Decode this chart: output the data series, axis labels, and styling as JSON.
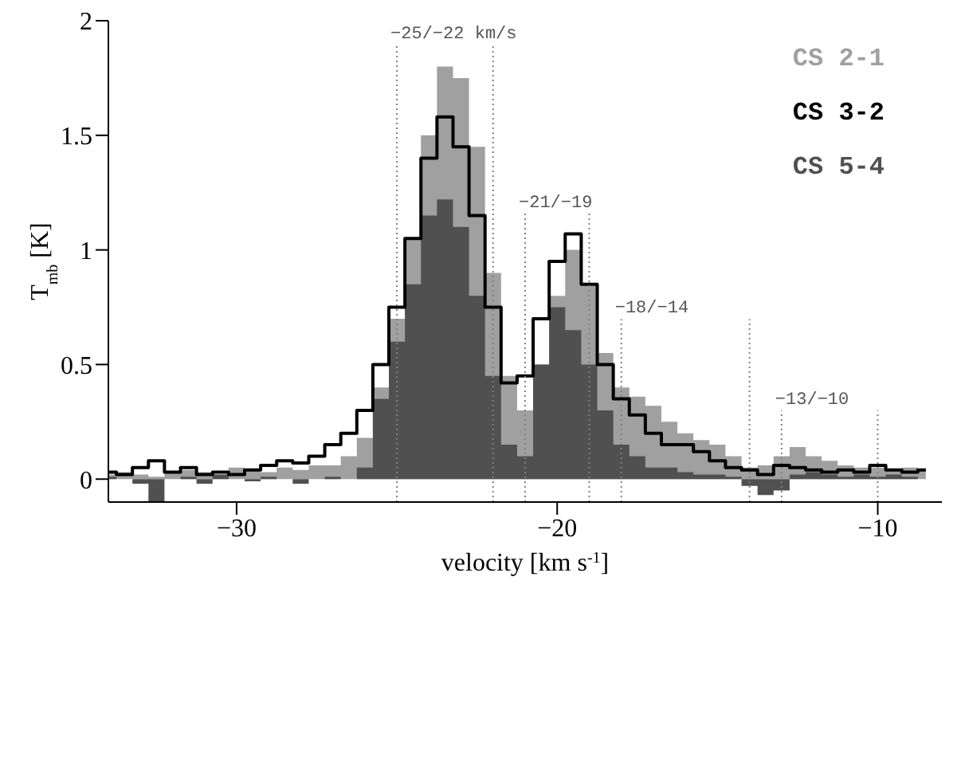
{
  "chart_data": {
    "type": "area",
    "xlabel": "velocity [km s$^{-1}$]",
    "ylabel": "T$_{mb}$ [K]",
    "x": [
      -34,
      -33.5,
      -33,
      -32.5,
      -32,
      -31.5,
      -31,
      -30.5,
      -30,
      -29.5,
      -29,
      -28.5,
      -28,
      -27.5,
      -27,
      -26.5,
      -26,
      -25.5,
      -25,
      -24.5,
      -24,
      -23.5,
      -23,
      -22.5,
      -22,
      -21.5,
      -21,
      -20.5,
      -20,
      -19.5,
      -19,
      -18.5,
      -18,
      -17.5,
      -17,
      -16.5,
      -16,
      -15.5,
      -15,
      -14.5,
      -14,
      -13.5,
      -13,
      -12.5,
      -12,
      -11.5,
      -11,
      -10.5,
      -10,
      -9.5,
      -9,
      -8.5
    ],
    "series": [
      {
        "name": "CS 2-1",
        "color": "#a0a0a0",
        "values": [
          0.02,
          0.03,
          0.02,
          0.01,
          0.03,
          0.04,
          0.03,
          0.02,
          0.05,
          0.04,
          0.03,
          0.05,
          0.04,
          0.06,
          0.06,
          0.1,
          0.18,
          0.4,
          0.7,
          1.05,
          1.5,
          1.8,
          1.75,
          1.45,
          0.9,
          0.45,
          0.3,
          0.5,
          0.8,
          1.0,
          0.85,
          0.55,
          0.4,
          0.36,
          0.32,
          0.25,
          0.2,
          0.17,
          0.15,
          0.1,
          0.05,
          0.06,
          0.1,
          0.14,
          0.1,
          0.08,
          0.06,
          0.05,
          0.05,
          0.04,
          0.05,
          0.04
        ]
      },
      {
        "name": "CS 5-4",
        "color": "#505050",
        "values": [
          0.01,
          0.0,
          -0.02,
          -0.1,
          0.0,
          0.01,
          -0.02,
          0.02,
          0.0,
          -0.01,
          0.01,
          0.0,
          -0.02,
          0.0,
          0.01,
          0.0,
          0.05,
          0.35,
          0.6,
          0.85,
          1.15,
          1.22,
          1.1,
          0.8,
          0.45,
          0.15,
          0.1,
          0.5,
          0.75,
          0.65,
          0.5,
          0.3,
          0.15,
          0.1,
          0.05,
          0.05,
          0.03,
          0.02,
          0.02,
          0.01,
          -0.03,
          -0.07,
          -0.05,
          0.02,
          0.03,
          0.02,
          0.01,
          0.02,
          0.01,
          0.02,
          0.01,
          0.0
        ]
      },
      {
        "name": "CS 3-2",
        "type": "step",
        "color": "#000000",
        "values": [
          0.03,
          0.02,
          0.05,
          0.08,
          0.03,
          0.05,
          0.02,
          0.03,
          0.02,
          0.04,
          0.06,
          0.08,
          0.07,
          0.1,
          0.15,
          0.2,
          0.3,
          0.5,
          0.75,
          1.05,
          1.4,
          1.58,
          1.45,
          1.15,
          0.75,
          0.42,
          0.45,
          0.7,
          0.95,
          1.07,
          0.85,
          0.5,
          0.35,
          0.28,
          0.2,
          0.15,
          0.15,
          0.12,
          0.08,
          0.05,
          0.04,
          0.02,
          0.06,
          0.05,
          0.04,
          0.03,
          0.04,
          0.03,
          0.06,
          0.04,
          0.03,
          0.04
        ]
      }
    ],
    "xlim": [
      -34,
      -8
    ],
    "xticks": [
      -30,
      -20,
      -10
    ],
    "ylim": [
      -0.1,
      2
    ],
    "yticks": [
      0,
      0.5,
      1,
      1.5,
      2
    ],
    "grid": false,
    "legend": "top right",
    "ref_lines": [
      {
        "axis": "x",
        "value": -25,
        "label": "−25/−22 km/s",
        "color": "#808080",
        "line_style": "dotted"
      },
      {
        "axis": "x",
        "value": -22,
        "color": "#808080",
        "line_style": "dotted"
      },
      {
        "axis": "x",
        "value": -21,
        "label": "−21/−19",
        "color": "#808080",
        "line_style": "dotted"
      },
      {
        "axis": "x",
        "value": -19,
        "color": "#808080",
        "line_style": "dotted"
      },
      {
        "axis": "x",
        "value": -18,
        "label": "−18/−14",
        "color": "#808080",
        "line_style": "dotted"
      },
      {
        "axis": "x",
        "value": -14,
        "color": "#808080",
        "line_style": "dotted"
      },
      {
        "axis": "x",
        "value": -13,
        "label": "−13/−10",
        "color": "#808080",
        "line_style": "dotted"
      },
      {
        "axis": "x",
        "value": -10,
        "color": "#808080",
        "line_style": "dotted"
      }
    ]
  }
}
